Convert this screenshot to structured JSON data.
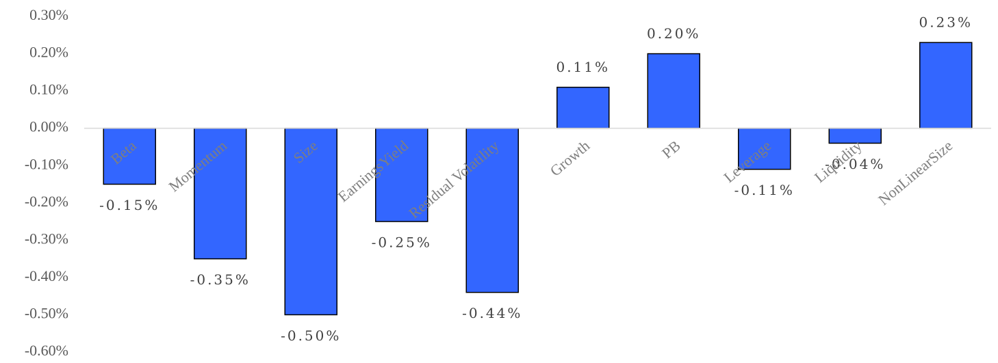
{
  "chart_data": {
    "type": "bar",
    "categories": [
      "Beta",
      "Momentum",
      "Size",
      "EarningsYield",
      "Residual Volatility",
      "Growth",
      "PB",
      "Leverage",
      "Liquidity",
      "NonLinearSize"
    ],
    "values": [
      -0.15,
      -0.35,
      -0.5,
      -0.25,
      -0.44,
      0.11,
      0.2,
      -0.11,
      -0.04,
      0.23
    ],
    "value_labels": [
      "-0.15%",
      "-0.35%",
      "-0.50%",
      "-0.25%",
      "-0.44%",
      "0.11%",
      "0.20%",
      "-0.11%",
      "-0.04%",
      "0.23%"
    ],
    "color": "#3366ff",
    "ylim": [
      -0.6,
      0.3
    ],
    "yticks": [
      {
        "value": 0.3,
        "label": "0.30%"
      },
      {
        "value": 0.2,
        "label": "0.20%"
      },
      {
        "value": 0.1,
        "label": "0.10%"
      },
      {
        "value": 0,
        "label": "0.00%"
      },
      {
        "value": -0.1,
        "label": "-0.10%"
      },
      {
        "value": -0.2,
        "label": "-0.20%"
      },
      {
        "value": -0.3,
        "label": "-0.30%"
      },
      {
        "value": -0.4,
        "label": "-0.40%"
      },
      {
        "value": -0.5,
        "label": "-0.50%"
      },
      {
        "value": -0.6,
        "label": "-0.60%"
      }
    ],
    "grid": false
  }
}
